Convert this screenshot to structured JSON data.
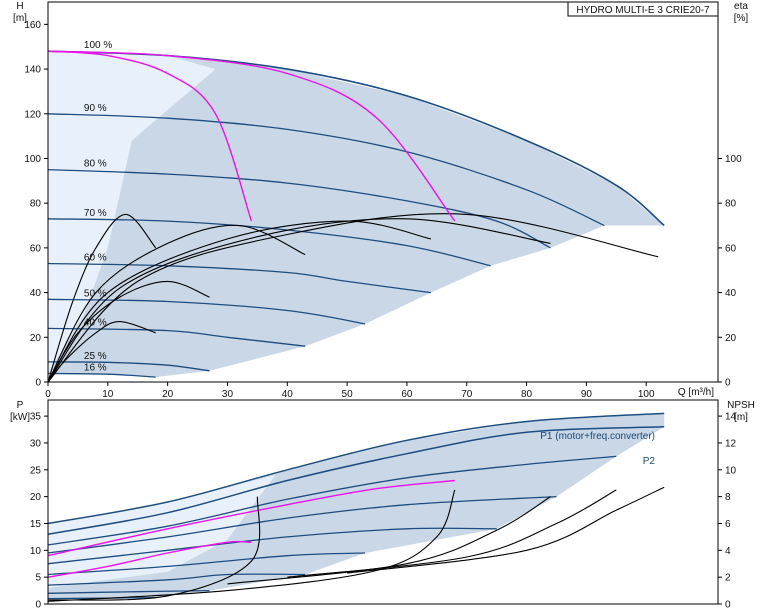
{
  "chart_data": [
    {
      "type": "line",
      "title": "HYDRO MULTI-E 3 CRIE20-7",
      "xlabel": "Q [m³/h]",
      "ylabel": [
        "H",
        "[m]"
      ],
      "y2label": [
        "eta",
        "[%]"
      ],
      "xlim": [
        0,
        112
      ],
      "ylim": [
        0,
        170
      ],
      "y2lim": [
        0,
        170
      ],
      "xticks": [
        "0",
        "10",
        "20",
        "30",
        "40",
        "50",
        "60",
        "70",
        "80",
        "90",
        "100"
      ],
      "yticks": [
        "0",
        "20",
        "40",
        "60",
        "80",
        "100",
        "120",
        "140",
        "160"
      ],
      "y2ticks": [
        "0",
        "20",
        "40",
        "60",
        "80",
        "100"
      ],
      "grid": false,
      "colors": {
        "curve": "#1d4d80",
        "envelope": "#c9d7e6",
        "envelope_light": "#e8f1fb",
        "limit": "#ee11ee",
        "efficiency": "#000000"
      },
      "speed_labels": [
        {
          "text": "100 %",
          "x": 6,
          "y": 148
        },
        {
          "text": "90 %",
          "x": 6,
          "y": 120
        },
        {
          "text": "80 %",
          "x": 6,
          "y": 95
        },
        {
          "text": "70 %",
          "x": 6,
          "y": 73
        },
        {
          "text": "60 %",
          "x": 6,
          "y": 53
        },
        {
          "text": "50 %",
          "x": 6,
          "y": 37
        },
        {
          "text": "40 %",
          "x": 6,
          "y": 24
        },
        {
          "text": "25 %",
          "x": 6,
          "y": 9
        },
        {
          "text": "16 %",
          "x": 6,
          "y": 3.8
        }
      ],
      "series": [
        {
          "values": [
            [
              0,
              148
            ],
            [
              20,
              146
            ],
            [
              40,
              140
            ],
            [
              60,
              128
            ],
            [
              80,
              108
            ],
            [
              95,
              88
            ],
            [
              103,
              70
            ]
          ]
        },
        {
          "values": [
            [
              0,
              120
            ],
            [
              20,
              118
            ],
            [
              40,
              113
            ],
            [
              60,
              103
            ],
            [
              80,
              86
            ],
            [
              93,
              70
            ]
          ]
        },
        {
          "values": [
            [
              0,
              95
            ],
            [
              20,
              93
            ],
            [
              40,
              89
            ],
            [
              60,
              81
            ],
            [
              75,
              72
            ],
            [
              84,
              60
            ]
          ]
        },
        {
          "values": [
            [
              0,
              73
            ],
            [
              20,
              72
            ],
            [
              40,
              68
            ],
            [
              60,
              61
            ],
            [
              74,
              52
            ]
          ]
        },
        {
          "values": [
            [
              0,
              53
            ],
            [
              20,
              52
            ],
            [
              40,
              49
            ],
            [
              50,
              45
            ],
            [
              64,
              40
            ]
          ]
        },
        {
          "values": [
            [
              0,
              37
            ],
            [
              20,
              36
            ],
            [
              40,
              32
            ],
            [
              53,
              26
            ]
          ]
        },
        {
          "values": [
            [
              0,
              24
            ],
            [
              20,
              23
            ],
            [
              30,
              20
            ],
            [
              43,
              16
            ]
          ]
        },
        {
          "values": [
            [
              0,
              9
            ],
            [
              10,
              8.8
            ],
            [
              20,
              7.5
            ],
            [
              27,
              5
            ]
          ]
        },
        {
          "values": [
            [
              0,
              3.8
            ],
            [
              10,
              3.5
            ],
            [
              18,
              2.2
            ]
          ]
        }
      ],
      "limit_curves": [
        {
          "values": [
            [
              0,
              148
            ],
            [
              10,
              146
            ],
            [
              20,
              138
            ],
            [
              28,
              120
            ],
            [
              34,
              72
            ]
          ]
        },
        {
          "values": [
            [
              0,
              148
            ],
            [
              20,
              146
            ],
            [
              40,
              138
            ],
            [
              55,
              118
            ],
            [
              68,
              72
            ]
          ]
        }
      ],
      "efficiency_curves": [
        {
          "values": [
            [
              0,
              0
            ],
            [
              4,
              35
            ],
            [
              8,
              60
            ],
            [
              13,
              75
            ],
            [
              18,
              60
            ]
          ]
        },
        {
          "values": [
            [
              0,
              0
            ],
            [
              3,
              10
            ],
            [
              8,
              22
            ],
            [
              12,
              27
            ],
            [
              18,
              22
            ]
          ]
        },
        {
          "values": [
            [
              0,
              0
            ],
            [
              5,
              22
            ],
            [
              12,
              38
            ],
            [
              20,
              45
            ],
            [
              27,
              38
            ]
          ]
        },
        {
          "values": [
            [
              0,
              0
            ],
            [
              8,
              40
            ],
            [
              20,
              62
            ],
            [
              32,
              70
            ],
            [
              43,
              57
            ]
          ]
        },
        {
          "values": [
            [
              0,
              0
            ],
            [
              10,
              40
            ],
            [
              30,
              64
            ],
            [
              50,
              72
            ],
            [
              64,
              64
            ]
          ]
        },
        {
          "values": [
            [
              0,
              0
            ],
            [
              12,
              42
            ],
            [
              35,
              65
            ],
            [
              60,
              73
            ],
            [
              84,
              62
            ]
          ]
        },
        {
          "values": [
            [
              0,
              0
            ],
            [
              15,
              45
            ],
            [
              40,
              66
            ],
            [
              70,
              75
            ],
            [
              102,
              56
            ]
          ]
        }
      ]
    },
    {
      "type": "line",
      "xlim": [
        0,
        112
      ],
      "ylim": [
        0,
        38
      ],
      "y2lim": [
        0,
        15.2
      ],
      "ylabel": [
        "P",
        "[kW]"
      ],
      "y2label": [
        "NPSH",
        "[m]"
      ],
      "yticks": [
        "0",
        "5",
        "10",
        "15",
        "20",
        "25",
        "30",
        "35"
      ],
      "y2ticks": [
        "0",
        "2",
        "4",
        "6",
        "8",
        "10",
        "12",
        "14"
      ],
      "grid": false,
      "series": [
        {
          "name": "P1 (motor+freq.converter)",
          "values": [
            [
              0,
              15
            ],
            [
              20,
              19
            ],
            [
              40,
              25
            ],
            [
              60,
              30.5
            ],
            [
              80,
              34
            ],
            [
              103,
              35.5
            ]
          ]
        },
        {
          "name": "P2",
          "values": [
            [
              0,
              13
            ],
            [
              20,
              17
            ],
            [
              40,
              23
            ],
            [
              60,
              28
            ],
            [
              80,
              32
            ],
            [
              103,
              33
            ]
          ]
        },
        {
          "values": [
            [
              0,
              11
            ],
            [
              20,
              14.5
            ],
            [
              40,
              19.5
            ],
            [
              60,
              23.5
            ],
            [
              80,
              26
            ],
            [
              95,
              27.5
            ]
          ]
        },
        {
          "values": [
            [
              0,
              9.5
            ],
            [
              20,
              12.5
            ],
            [
              40,
              16
            ],
            [
              60,
              18.5
            ],
            [
              85,
              20
            ]
          ]
        },
        {
          "values": [
            [
              0,
              7.5
            ],
            [
              20,
              10
            ],
            [
              40,
              12.5
            ],
            [
              60,
              14
            ],
            [
              75,
              14
            ]
          ]
        },
        {
          "values": [
            [
              0,
              5.5
            ],
            [
              20,
              7
            ],
            [
              40,
              9
            ],
            [
              53,
              9.5
            ]
          ]
        },
        {
          "values": [
            [
              0,
              3.5
            ],
            [
              20,
              4.5
            ],
            [
              30,
              5.5
            ],
            [
              43,
              5.5
            ]
          ]
        },
        {
          "values": [
            [
              0,
              2
            ],
            [
              15,
              2.3
            ],
            [
              27,
              2.5
            ]
          ]
        },
        {
          "values": [
            [
              0,
              1
            ],
            [
              10,
              1.1
            ],
            [
              18,
              1.2
            ]
          ]
        }
      ],
      "limit_curves": [
        {
          "values": [
            [
              0,
              5
            ],
            [
              10,
              7
            ],
            [
              20,
              9.5
            ],
            [
              30,
              11.5
            ],
            [
              34,
              11.5
            ]
          ]
        },
        {
          "values": [
            [
              0,
              9
            ],
            [
              20,
              14
            ],
            [
              40,
              18.5
            ],
            [
              55,
              21.5
            ],
            [
              68,
              23
            ]
          ]
        }
      ],
      "npsh_curves": [
        {
          "values": [
            [
              0,
              0.3
            ],
            [
              20,
              0.6
            ],
            [
              34,
              3.2
            ],
            [
              35,
              8
            ]
          ]
        },
        {
          "values": [
            [
              0,
              0.2
            ],
            [
              30,
              1
            ],
            [
              55,
              2.5
            ],
            [
              65,
              5
            ],
            [
              68,
              8.5
            ]
          ]
        },
        {
          "values": [
            [
              30,
              1.5
            ],
            [
              60,
              3
            ],
            [
              75,
              5.5
            ],
            [
              84,
              8
            ]
          ]
        },
        {
          "values": [
            [
              40,
              2
            ],
            [
              70,
              3.5
            ],
            [
              85,
              6
            ],
            [
              95,
              8.5
            ]
          ]
        },
        {
          "values": [
            [
              50,
              2.3
            ],
            [
              80,
              4
            ],
            [
              95,
              7
            ],
            [
              103,
              8.7
            ]
          ]
        }
      ]
    }
  ]
}
